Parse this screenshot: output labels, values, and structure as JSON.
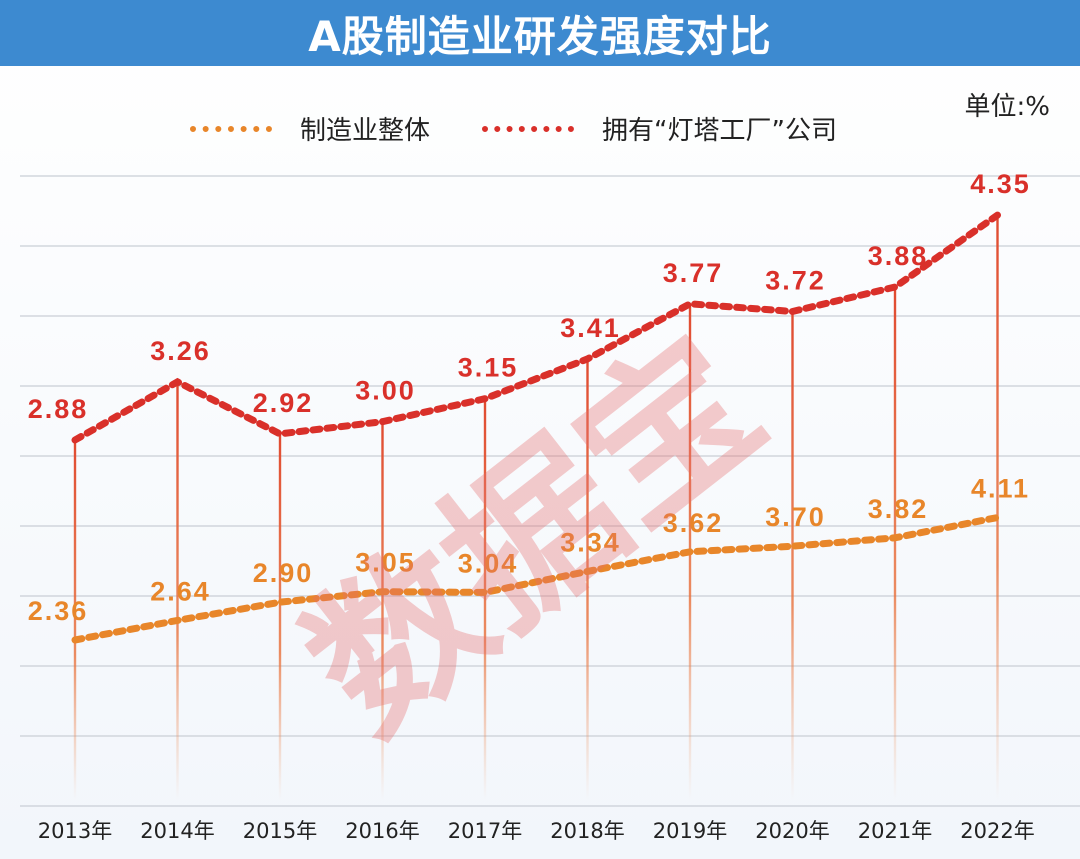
{
  "chart_data": {
    "type": "line",
    "title": "A股制造业研发强度对比",
    "unit_label": "单位:%",
    "categories": [
      "2013年",
      "2014年",
      "2015年",
      "2016年",
      "2017年",
      "2018年",
      "2019年",
      "2020年",
      "2021年",
      "2022年"
    ],
    "series": [
      {
        "name": "制造业整体",
        "color": "#e8862a",
        "values": [
          2.36,
          2.64,
          2.9,
          3.05,
          3.04,
          3.34,
          3.62,
          3.7,
          3.82,
          4.11
        ]
      },
      {
        "name": "拥有“灯塔工厂”公司",
        "color": "#d9302a",
        "values": [
          2.88,
          3.26,
          2.92,
          3.0,
          3.15,
          3.41,
          3.77,
          3.72,
          3.88,
          4.35
        ]
      }
    ],
    "legend_position": "top",
    "grid": true,
    "watermark": "数据宝"
  }
}
